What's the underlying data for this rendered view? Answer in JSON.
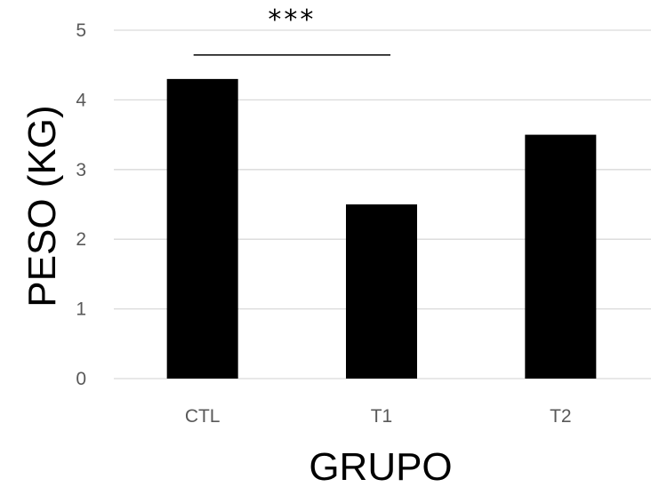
{
  "chart_data": {
    "type": "bar",
    "categories": [
      "CTL",
      "T1",
      "T2"
    ],
    "values": [
      4.3,
      2.5,
      3.5
    ],
    "xlabel": "GRUPO",
    "ylabel": "PESO (KG)",
    "ylim": [
      0,
      5
    ],
    "yticks": [
      0,
      1,
      2,
      3,
      4,
      5
    ],
    "grid": true,
    "bar_color": "#000000",
    "annotations": [
      {
        "text": "***",
        "from": "CTL",
        "to": "T1"
      }
    ]
  }
}
